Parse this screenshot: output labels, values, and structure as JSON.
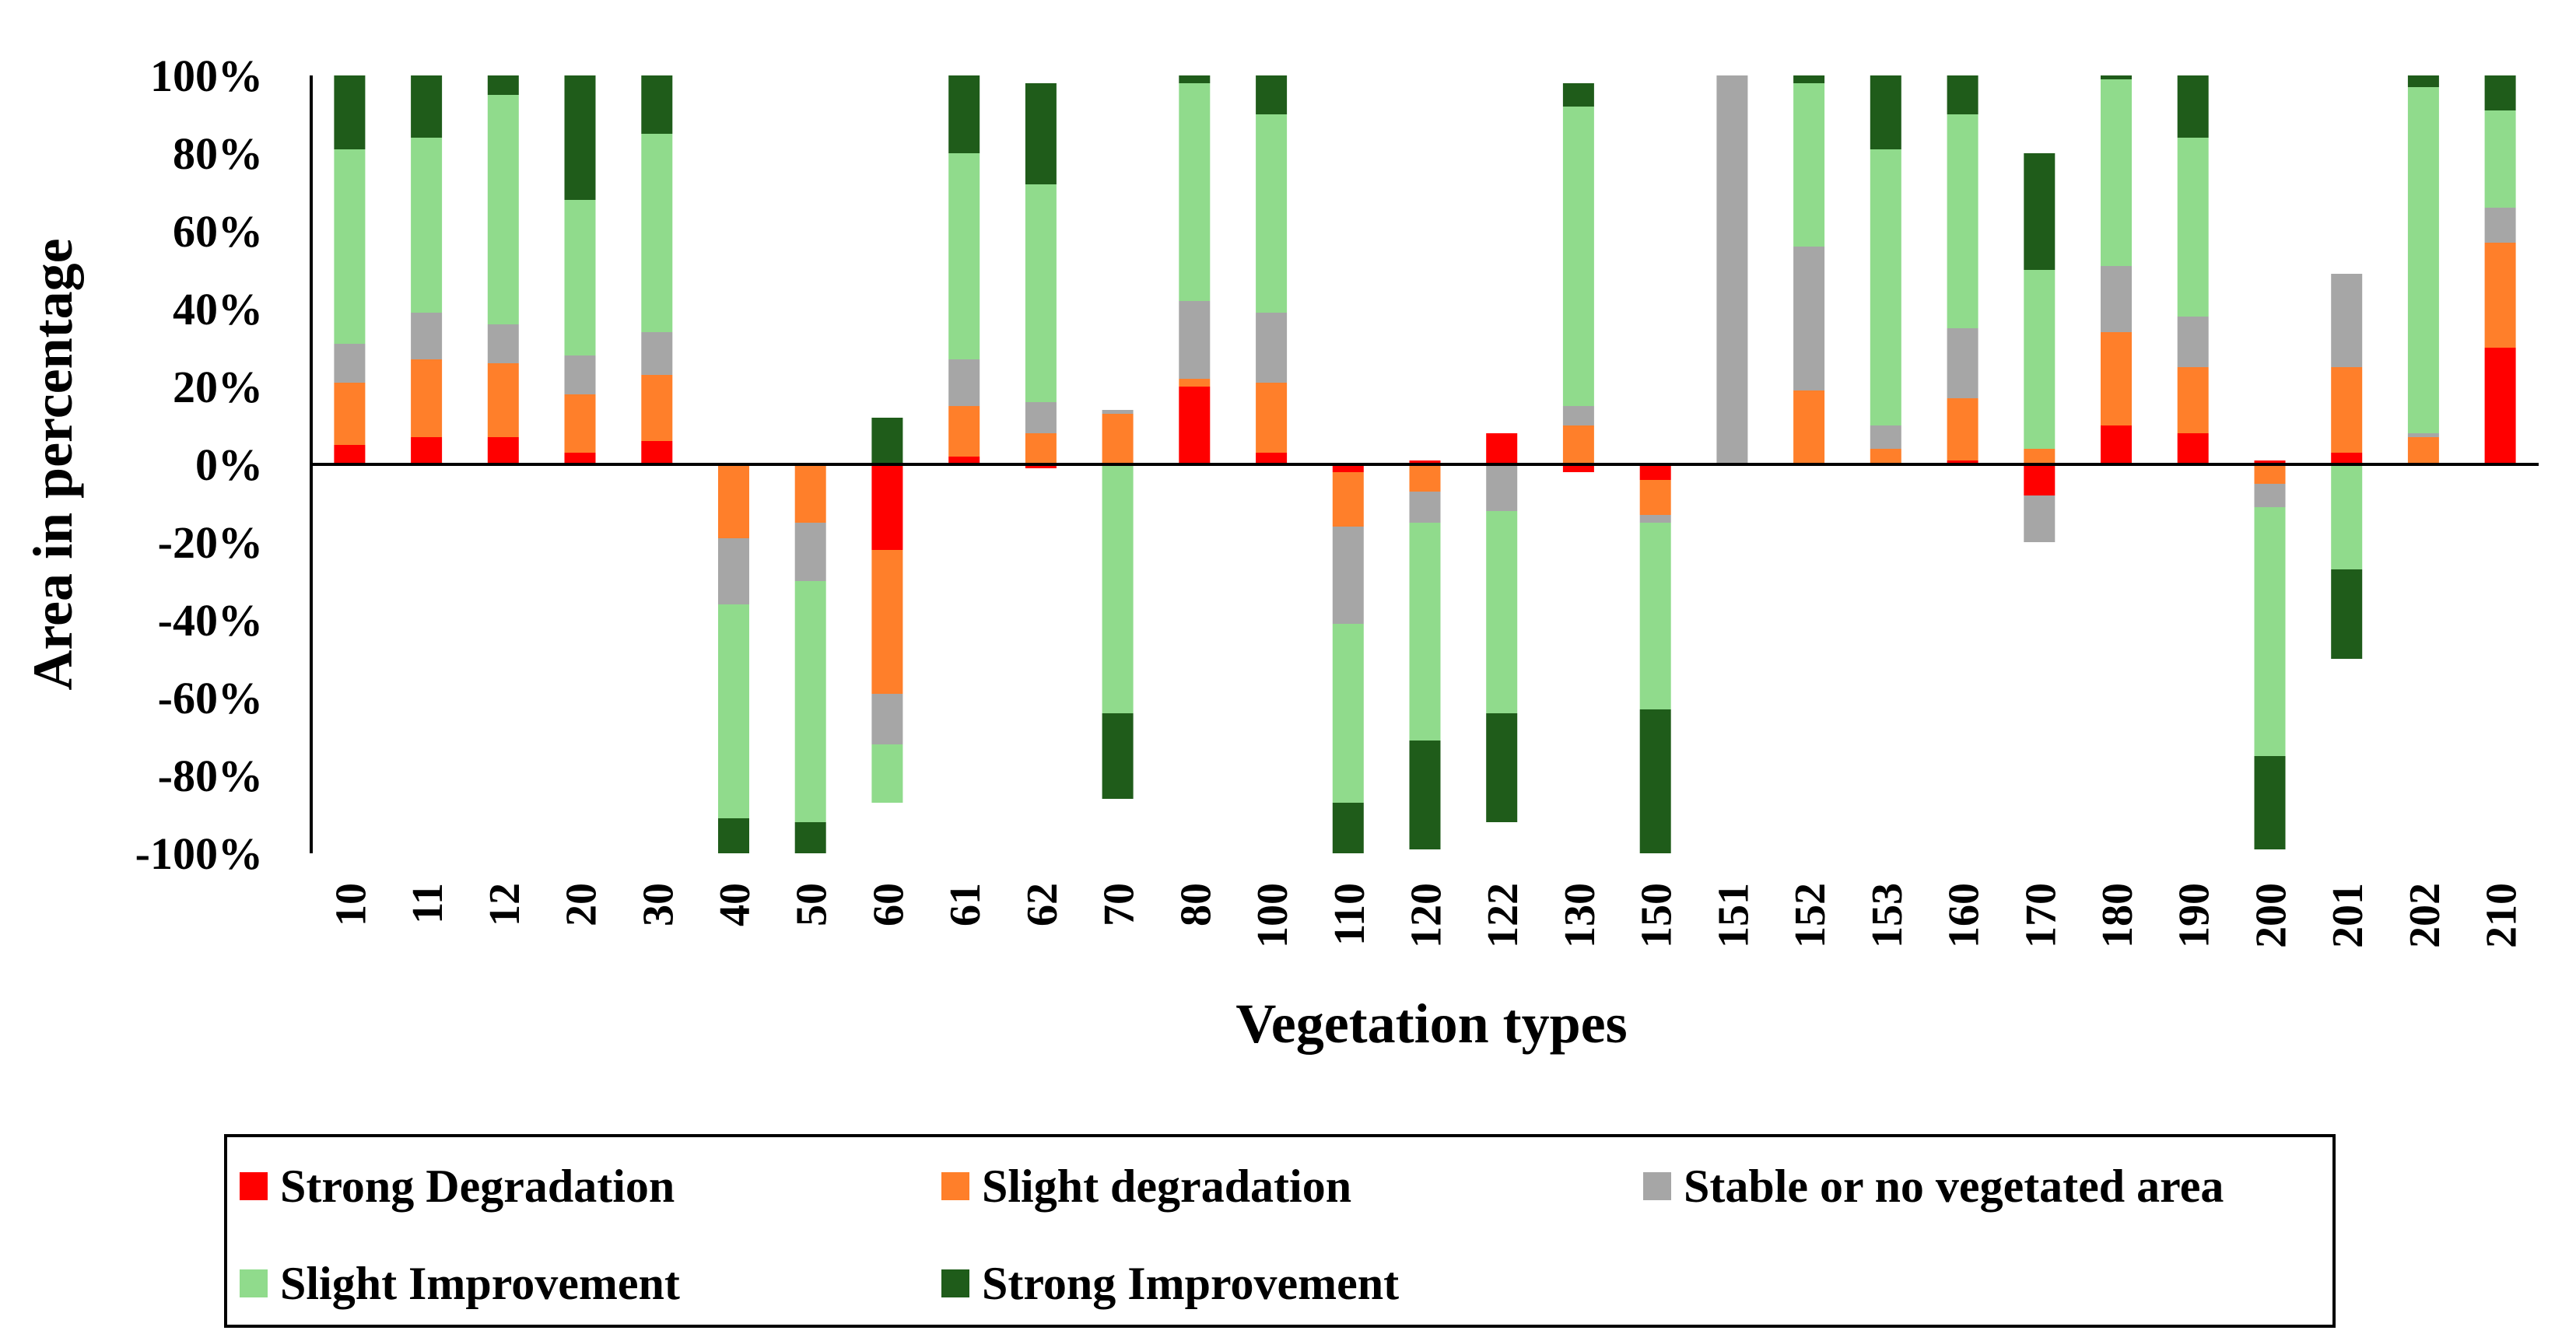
{
  "chart_data": {
    "type": "bar",
    "stacked": true,
    "diverging": true,
    "title": "",
    "xlabel": "Vegetation types",
    "ylabel": "Area in percentage",
    "ylim": [
      -100,
      100
    ],
    "yticks": [
      "100%",
      "80%",
      "60%",
      "40%",
      "20%",
      "0%",
      "-20%",
      "-40%",
      "-60%",
      "-80%",
      "-100%"
    ],
    "ytick_values": [
      100,
      80,
      60,
      40,
      20,
      0,
      -20,
      -40,
      -60,
      -80,
      -100
    ],
    "legend_position": "bottom",
    "categories": [
      "10",
      "11",
      "12",
      "20",
      "30",
      "40",
      "50",
      "60",
      "61",
      "62",
      "70",
      "80",
      "100",
      "110",
      "120",
      "122",
      "130",
      "150",
      "151",
      "152",
      "153",
      "160",
      "170",
      "180",
      "190",
      "200",
      "201",
      "202",
      "210"
    ],
    "series": [
      {
        "name": "Strong Degradation",
        "color": "#ff0000",
        "values": [
          [
            0,
            5
          ],
          [
            0,
            7
          ],
          [
            0,
            7
          ],
          [
            0,
            3
          ],
          [
            0,
            6
          ],
          [
            0,
            0
          ],
          [
            0,
            0
          ],
          [
            -22,
            0
          ],
          [
            0,
            2
          ],
          [
            -1,
            0
          ],
          [
            0,
            0
          ],
          [
            0,
            20
          ],
          [
            0,
            3
          ],
          [
            -2,
            0
          ],
          [
            0,
            1
          ],
          [
            0,
            8
          ],
          [
            -2,
            0
          ],
          [
            -4,
            0
          ],
          [
            0,
            0
          ],
          [
            0,
            0
          ],
          [
            0,
            0
          ],
          [
            0,
            1
          ],
          [
            -8,
            0
          ],
          [
            0,
            10
          ],
          [
            0,
            8
          ],
          [
            0,
            1
          ],
          [
            0,
            3
          ],
          [
            0,
            0
          ],
          [
            0,
            30
          ]
        ]
      },
      {
        "name": "Slight degradation",
        "color": "#ff7f2a",
        "values": [
          [
            5,
            21
          ],
          [
            7,
            27
          ],
          [
            7,
            26
          ],
          [
            3,
            18
          ],
          [
            6,
            23
          ],
          [
            -19,
            0
          ],
          [
            -15,
            0
          ],
          [
            -59,
            -22
          ],
          [
            2,
            15
          ],
          [
            0,
            8
          ],
          [
            0,
            13
          ],
          [
            20,
            22
          ],
          [
            3,
            21
          ],
          [
            -16,
            -2
          ],
          [
            -7,
            0
          ],
          [
            0,
            0
          ],
          [
            0,
            10
          ],
          [
            -13,
            -4
          ],
          [
            0,
            0
          ],
          [
            0,
            19
          ],
          [
            0,
            4
          ],
          [
            1,
            17
          ],
          [
            0,
            4
          ],
          [
            10,
            34
          ],
          [
            8,
            25
          ],
          [
            -5,
            0
          ],
          [
            3,
            25
          ],
          [
            0,
            7
          ],
          [
            30,
            57
          ]
        ]
      },
      {
        "name": "Stable or no vegetated area",
        "color": "#a6a6a6",
        "values": [
          [
            21,
            31
          ],
          [
            27,
            39
          ],
          [
            26,
            36
          ],
          [
            18,
            28
          ],
          [
            23,
            34
          ],
          [
            -36,
            -19
          ],
          [
            -30,
            -15
          ],
          [
            -72,
            -59
          ],
          [
            15,
            27
          ],
          [
            8,
            16
          ],
          [
            13,
            14
          ],
          [
            22,
            42
          ],
          [
            21,
            39
          ],
          [
            -41,
            -16
          ],
          [
            -15,
            -7
          ],
          [
            -12,
            0
          ],
          [
            10,
            15
          ],
          [
            -15,
            -13
          ],
          [
            0,
            100
          ],
          [
            19,
            56
          ],
          [
            4,
            10
          ],
          [
            17,
            35
          ],
          [
            -20,
            -8
          ],
          [
            34,
            51
          ],
          [
            25,
            38
          ],
          [
            -11,
            -5
          ],
          [
            25,
            49
          ],
          [
            7,
            8
          ],
          [
            57,
            66
          ]
        ]
      },
      {
        "name": "Slight Improvement",
        "color": "#90db8c",
        "values": [
          [
            31,
            81
          ],
          [
            39,
            84
          ],
          [
            36,
            95
          ],
          [
            28,
            68
          ],
          [
            34,
            85
          ],
          [
            -91,
            -36
          ],
          [
            -92,
            -30
          ],
          [
            -87,
            -72
          ],
          [
            27,
            80
          ],
          [
            16,
            72
          ],
          [
            -64,
            0
          ],
          [
            42,
            98
          ],
          [
            39,
            90
          ],
          [
            -87,
            -41
          ],
          [
            -71,
            -15
          ],
          [
            -64,
            -12
          ],
          [
            15,
            92
          ],
          [
            -63,
            -15
          ],
          [
            0,
            0
          ],
          [
            56,
            98
          ],
          [
            10,
            81
          ],
          [
            35,
            90
          ],
          [
            4,
            50
          ],
          [
            51,
            99
          ],
          [
            38,
            84
          ],
          [
            -75,
            -11
          ],
          [
            -27,
            0
          ],
          [
            8,
            97
          ],
          [
            66,
            91
          ]
        ]
      },
      {
        "name": "Strong Improvement",
        "color": "#1f5c1a",
        "values": [
          [
            81,
            100
          ],
          [
            84,
            100
          ],
          [
            95,
            100
          ],
          [
            68,
            100
          ],
          [
            85,
            100
          ],
          [
            -100,
            -91
          ],
          [
            -100,
            -92
          ],
          [
            0,
            12
          ],
          [
            80,
            100
          ],
          [
            72,
            98
          ],
          [
            -86,
            -64
          ],
          [
            98,
            100
          ],
          [
            90,
            100
          ],
          [
            -100,
            -87
          ],
          [
            -99,
            -71
          ],
          [
            -92,
            -64
          ],
          [
            92,
            98
          ],
          [
            -100,
            -63
          ],
          [
            0,
            0
          ],
          [
            98,
            100
          ],
          [
            81,
            100
          ],
          [
            90,
            100
          ],
          [
            50,
            80
          ],
          [
            99,
            100
          ],
          [
            84,
            100
          ],
          [
            -99,
            -75
          ],
          [
            -50,
            -27
          ],
          [
            97,
            100
          ],
          [
            91,
            100
          ]
        ]
      }
    ]
  }
}
